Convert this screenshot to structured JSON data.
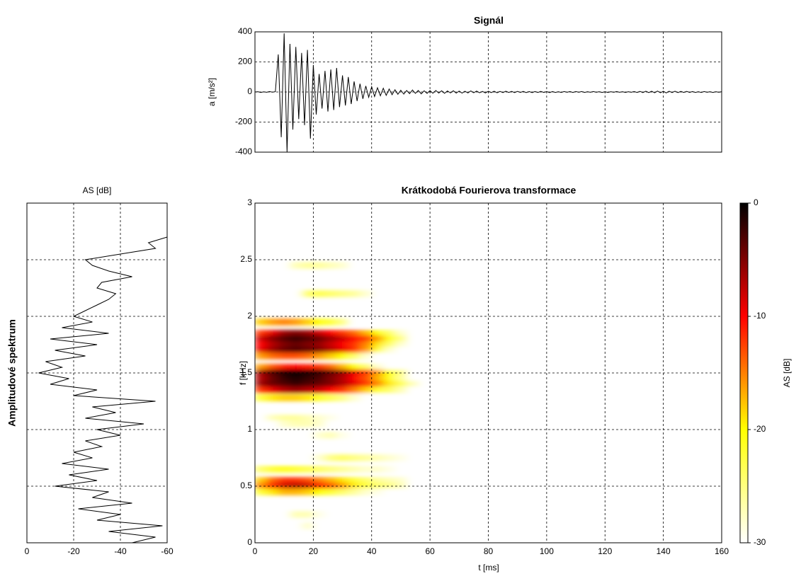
{
  "chart_data": [
    {
      "type": "line",
      "title": "Signál",
      "ylabel": "a [m/s²]",
      "color": "#000000",
      "x": [
        0,
        1,
        2,
        3,
        4,
        5,
        6,
        7,
        8,
        9,
        10,
        11,
        12,
        13,
        14,
        15,
        16,
        17,
        18,
        19,
        20,
        21,
        22,
        23,
        24,
        25,
        26,
        27,
        28,
        29,
        30,
        31,
        32,
        33,
        34,
        35,
        36,
        37,
        38,
        39,
        40,
        41,
        42,
        43,
        44,
        45,
        46,
        47,
        48,
        49,
        50,
        51,
        52,
        53,
        54,
        55,
        56,
        57,
        58,
        59,
        60,
        61,
        62,
        63,
        64,
        65,
        66,
        67,
        68,
        69,
        70,
        71,
        72,
        73,
        74,
        75,
        76,
        77,
        78,
        79,
        80,
        81,
        82,
        83,
        84,
        85,
        86,
        87,
        88,
        89,
        90,
        91,
        92,
        93,
        94,
        95,
        96,
        97,
        98,
        99,
        100,
        101,
        102,
        103,
        104,
        105,
        106,
        107,
        108,
        109,
        110,
        111,
        112,
        113,
        114,
        115,
        116,
        117,
        118,
        119,
        120,
        121,
        122,
        123,
        124,
        125,
        126,
        127,
        128,
        129,
        130,
        131,
        132,
        133,
        134,
        135,
        136,
        137,
        138,
        139,
        140,
        141,
        142,
        143,
        144,
        145,
        146,
        147,
        148,
        149,
        150,
        151,
        152,
        153,
        154,
        155,
        156,
        157,
        158,
        159,
        160
      ],
      "values": [
        0,
        2,
        -3,
        1,
        -2,
        3,
        -1,
        2,
        250,
        -300,
        390,
        -400,
        320,
        -250,
        300,
        -180,
        260,
        -220,
        280,
        -310,
        180,
        -150,
        120,
        -110,
        140,
        -130,
        150,
        -120,
        160,
        -100,
        110,
        -90,
        100,
        -80,
        70,
        -60,
        55,
        -45,
        40,
        -35,
        35,
        -30,
        28,
        -25,
        25,
        -22,
        20,
        -18,
        15,
        -15,
        12,
        -14,
        10,
        -11,
        13,
        -9,
        10,
        -12,
        8,
        -9,
        9,
        -8,
        10,
        -7,
        8,
        -9,
        7,
        -6,
        8,
        -7,
        6,
        -7,
        5,
        -6,
        7,
        -5,
        6,
        -5,
        4,
        -6,
        5,
        -4,
        5,
        -5,
        4,
        -4,
        5,
        -3,
        4,
        -4,
        4,
        -3,
        4,
        -4,
        3,
        -4,
        3,
        -3,
        4,
        -3,
        3,
        -4,
        3,
        -3,
        2,
        -3,
        3,
        -2,
        3,
        -3,
        3,
        -2,
        3,
        -3,
        2,
        -2,
        3,
        -2,
        2,
        -3,
        2,
        -3,
        2,
        -2,
        3,
        -2,
        2,
        -3,
        2,
        -2,
        3,
        -3,
        4,
        -4,
        5,
        -4,
        5,
        -5,
        6,
        -5,
        5,
        -6,
        5,
        -4,
        5,
        -4,
        4,
        -3,
        4,
        -3,
        3,
        -3,
        2,
        -3,
        3,
        -2,
        2,
        -3,
        2,
        -2,
        2
      ],
      "xlim": [
        0,
        160
      ],
      "xticks": [
        0,
        20,
        40,
        60,
        80,
        100,
        120,
        140,
        160
      ],
      "show_xtick_labels": false,
      "ylim": [
        -400,
        400
      ],
      "yticks": [
        -400,
        -200,
        0,
        200,
        400
      ],
      "grid": true
    },
    {
      "type": "line",
      "orientation": "horizontal",
      "title": "AS [dB]",
      "ylabel": "Amplitudové spektrum",
      "color": "#000000",
      "y": [
        0,
        0.05,
        0.1,
        0.15,
        0.2,
        0.25,
        0.3,
        0.35,
        0.4,
        0.45,
        0.5,
        0.55,
        0.6,
        0.65,
        0.7,
        0.75,
        0.8,
        0.85,
        0.9,
        0.95,
        1,
        1.05,
        1.1,
        1.15,
        1.2,
        1.25,
        1.3,
        1.35,
        1.4,
        1.45,
        1.5,
        1.55,
        1.6,
        1.65,
        1.7,
        1.75,
        1.8,
        1.85,
        1.9,
        1.95,
        2,
        2.05,
        2.1,
        2.15,
        2.2,
        2.25,
        2.3,
        2.35,
        2.4,
        2.45,
        2.5,
        2.55,
        2.6,
        2.65,
        2.7
      ],
      "values": [
        -45,
        -55,
        -35,
        -58,
        -30,
        -40,
        -22,
        -45,
        -28,
        -35,
        -12,
        -30,
        -18,
        -35,
        -15,
        -28,
        -20,
        -32,
        -25,
        -40,
        -30,
        -50,
        -25,
        -38,
        -28,
        -55,
        -20,
        -30,
        -10,
        -18,
        -5,
        -15,
        -8,
        -25,
        -12,
        -30,
        -10,
        -35,
        -15,
        -28,
        -20,
        -25,
        -30,
        -35,
        -38,
        -30,
        -32,
        -45,
        -35,
        -28,
        -25,
        -40,
        -55,
        -52,
        -60
      ],
      "xlim": [
        0,
        -60
      ],
      "xticks": [
        0,
        -20,
        -40,
        -60
      ],
      "ylim": [
        0,
        3
      ],
      "yticks": [
        0,
        0.5,
        1,
        1.5,
        2,
        2.5,
        3
      ],
      "show_ytick_labels": false,
      "grid": true
    },
    {
      "type": "heatmap",
      "title": "Krátkodobá Fourierova transformace",
      "xlabel": "t [ms]",
      "ylabel": "f [kHz]",
      "x": [
        2,
        6,
        10,
        14,
        18,
        22,
        26,
        30,
        34,
        38,
        42,
        46,
        50,
        54,
        58
      ],
      "y": [
        2.45,
        2.2,
        1.95,
        1.85,
        1.8,
        1.75,
        1.7,
        1.65,
        1.55,
        1.5,
        1.45,
        1.4,
        1.35,
        1.28,
        1.1,
        1.05,
        0.95,
        0.75,
        0.65,
        0.55,
        0.5,
        0.45,
        0.25,
        0.15
      ],
      "z": [
        [
          -30,
          -30,
          -30,
          -27,
          -26,
          -26,
          -27,
          -28,
          -30,
          -30,
          -30,
          -30,
          -30,
          -30,
          -30
        ],
        [
          -30,
          -30,
          -30,
          -30,
          -24,
          -23,
          -24,
          -25,
          -26,
          -28,
          -30,
          -30,
          -30,
          -30,
          -30
        ],
        [
          -18,
          -16,
          -15,
          -16,
          -18,
          -20,
          -22,
          -25,
          -30,
          -30,
          -30,
          -30,
          -30,
          -30,
          -30
        ],
        [
          -12,
          -9,
          -6,
          -5,
          -6,
          -8,
          -10,
          -12,
          -14,
          -17,
          -20,
          -24,
          -28,
          -30,
          -30
        ],
        [
          -8,
          -5,
          -3,
          -2,
          -3,
          -4,
          -6,
          -8,
          -10,
          -12,
          -16,
          -20,
          -25,
          -30,
          -30
        ],
        [
          -10,
          -7,
          -5,
          -4,
          -5,
          -6,
          -8,
          -10,
          -12,
          -15,
          -19,
          -24,
          -28,
          -30,
          -30
        ],
        [
          -9,
          -6,
          -4,
          -3,
          -4,
          -5,
          -7,
          -9,
          -12,
          -16,
          -22,
          -28,
          -30,
          -30,
          -30
        ],
        [
          -16,
          -14,
          -13,
          -13,
          -14,
          -16,
          -18,
          -20,
          -24,
          -28,
          -30,
          -30,
          -30,
          -30,
          -30
        ],
        [
          -16,
          -13,
          -11,
          -10,
          -11,
          -12,
          -14,
          -17,
          -20,
          -24,
          -28,
          -30,
          -30,
          -30,
          -30
        ],
        [
          -6,
          -3,
          -1,
          0,
          -1,
          -2,
          -4,
          -6,
          -9,
          -12,
          -16,
          -20,
          -25,
          -30,
          -30
        ],
        [
          -7,
          -4,
          -2,
          -1,
          -2,
          -3,
          -5,
          -7,
          -10,
          -13,
          -17,
          -21,
          -26,
          -30,
          -30
        ],
        [
          -6,
          -4,
          -3,
          -2,
          -3,
          -4,
          -5,
          -7,
          -9,
          -12,
          -15,
          -19,
          -23,
          -27,
          -30
        ],
        [
          -12,
          -9,
          -7,
          -6,
          -7,
          -8,
          -10,
          -12,
          -15,
          -18,
          -22,
          -24,
          -27,
          -30,
          -30
        ],
        [
          -22,
          -19,
          -18,
          -18,
          -19,
          -21,
          -23,
          -25,
          -28,
          -30,
          -30,
          -30,
          -30,
          -30,
          -30
        ],
        [
          -30,
          -27,
          -26,
          -26,
          -27,
          -28,
          -29,
          -30,
          -30,
          -30,
          -30,
          -30,
          -30,
          -30,
          -30
        ],
        [
          -30,
          -30,
          -28,
          -27,
          -27,
          -28,
          -30,
          -30,
          -30,
          -30,
          -30,
          -30,
          -30,
          -30,
          -30
        ],
        [
          -30,
          -30,
          -30,
          -30,
          -30,
          -28,
          -27,
          -29,
          -30,
          -30,
          -30,
          -30,
          -30,
          -30,
          -30
        ],
        [
          -30,
          -30,
          -30,
          -30,
          -30,
          -28,
          -25,
          -24,
          -25,
          -26,
          -27,
          -28,
          -29,
          -30,
          -30
        ],
        [
          -24,
          -22,
          -21,
          -22,
          -23,
          -24,
          -25,
          -26,
          -27,
          -28,
          -28,
          -29,
          -30,
          -30,
          -30
        ],
        [
          -18,
          -14,
          -12,
          -12,
          -13,
          -15,
          -17,
          -19,
          -22,
          -24,
          -26,
          -27,
          -28,
          -30,
          -30
        ],
        [
          -15,
          -11,
          -8,
          -7,
          -8,
          -10,
          -13,
          -16,
          -19,
          -22,
          -24,
          -25,
          -27,
          -30,
          -30
        ],
        [
          -22,
          -19,
          -17,
          -17,
          -18,
          -20,
          -22,
          -24,
          -26,
          -28,
          -29,
          -30,
          -30,
          -30,
          -30
        ],
        [
          -30,
          -30,
          -30,
          -27,
          -27,
          -29,
          -30,
          -30,
          -30,
          -30,
          -30,
          -30,
          -30,
          -30,
          -30
        ],
        [
          -30,
          -30,
          -30,
          -30,
          -28,
          -30,
          -30,
          -30,
          -30,
          -30,
          -30,
          -30,
          -30,
          -30,
          -30
        ]
      ],
      "xlim": [
        0,
        160
      ],
      "xticks": [
        0,
        20,
        40,
        60,
        80,
        100,
        120,
        140,
        160
      ],
      "ylim": [
        0,
        3
      ],
      "yticks": [
        0,
        0.5,
        1,
        1.5,
        2,
        2.5,
        3
      ],
      "grid": true,
      "colorbar": {
        "label": "AS [dB]",
        "clim": [
          -30,
          0
        ],
        "ticks": [
          0,
          -10,
          -20,
          -30
        ],
        "colorscale": [
          {
            "value": 0,
            "color": "#000000"
          },
          {
            "value": -10,
            "color": "#ff0000"
          },
          {
            "value": -20,
            "color": "#ffff00"
          },
          {
            "value": -30,
            "color": "#ffffff"
          }
        ]
      }
    }
  ]
}
